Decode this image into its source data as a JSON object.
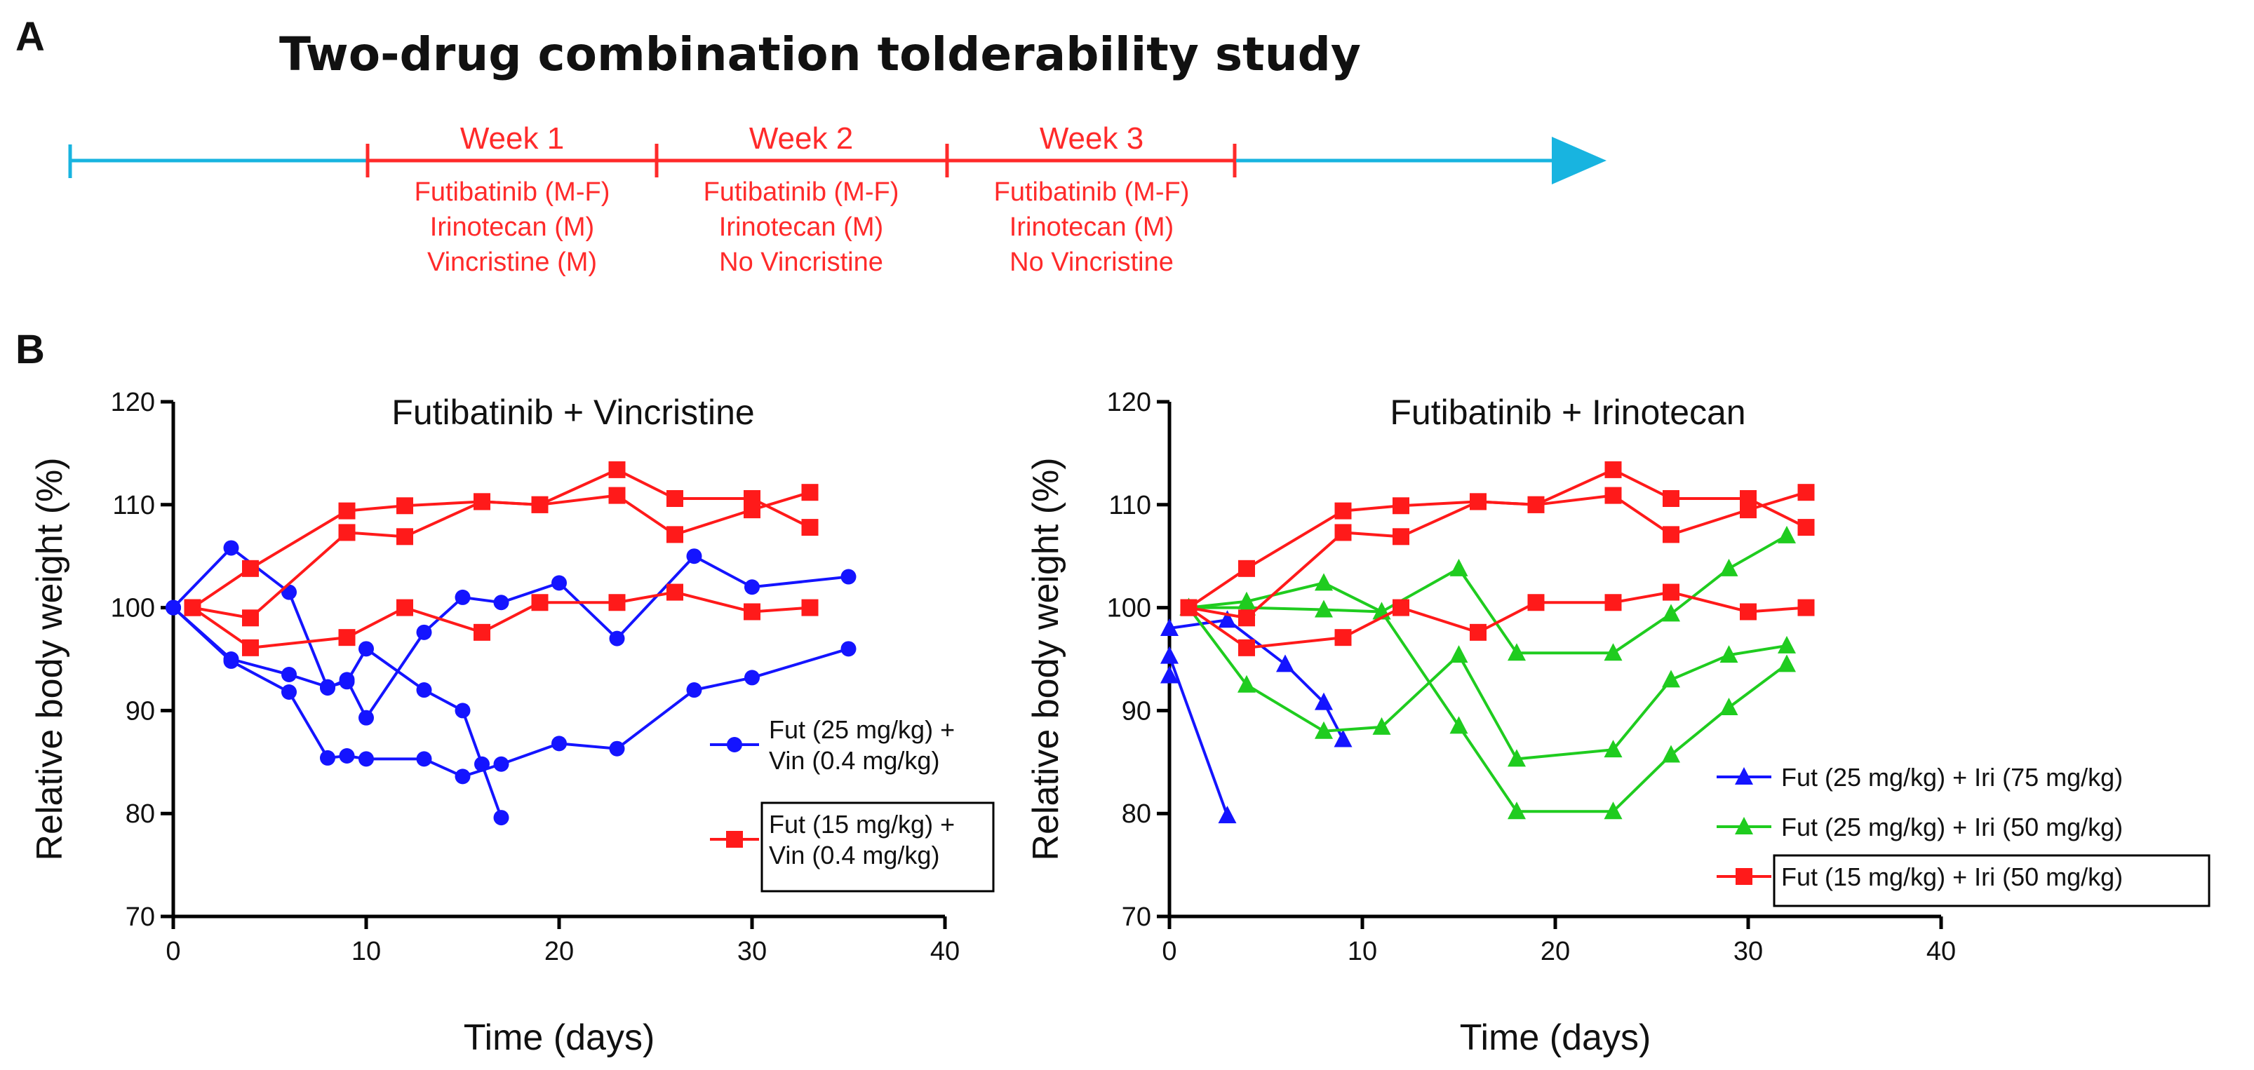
{
  "panel_a": {
    "letter": "A",
    "title": "Two-drug combination tolderability study",
    "colors": {
      "baseline": "#18b4e0",
      "treatment": "#ff2a2a"
    },
    "weeks": [
      {
        "label": "Week 1",
        "drugs": [
          "Futibatinib (M-F)",
          "Irinotecan (M)",
          "Vincristine (M)"
        ]
      },
      {
        "label": "Week 2",
        "drugs": [
          "Futibatinib (M-F)",
          "Irinotecan (M)",
          "No Vincristine"
        ]
      },
      {
        "label": "Week 3",
        "drugs": [
          "Futibatinib (M-F)",
          "Irinotecan (M)",
          "No Vincristine"
        ]
      }
    ]
  },
  "panel_b": {
    "letter": "B"
  },
  "chart_data": [
    {
      "type": "line",
      "title": "Futibatinib + Vincristine",
      "xlabel": "Time (days)",
      "ylabel": "Relative body weight (%)",
      "xlim": [
        0,
        40
      ],
      "ylim": [
        70,
        120
      ],
      "xticks": [
        0,
        10,
        20,
        30,
        40
      ],
      "yticks": [
        70,
        80,
        90,
        100,
        110,
        120
      ],
      "legend": [
        {
          "lines": [
            "Fut (25 mg/kg) +",
            "Vin (0.4 mg/kg)"
          ],
          "color": "#1414ff",
          "marker": "circle",
          "boxed": false
        },
        {
          "lines": [
            "Fut (15 mg/kg) +",
            "Vin (0.4 mg/kg)"
          ],
          "color": "#ff1a1a",
          "marker": "square",
          "boxed": true
        }
      ],
      "series": [
        {
          "name": "Fut (25 mg/kg) + Vin (0.4 mg/kg) #1",
          "color": "#1414ff",
          "marker": "circle",
          "x": [
            0,
            3,
            6,
            8,
            9,
            10,
            13,
            15,
            16,
            17
          ],
          "y": [
            100,
            95,
            93.5,
            92.3,
            92.8,
            96,
            92,
            90,
            84.8,
            79.6
          ]
        },
        {
          "name": "Fut (25 mg/kg) + Vin (0.4 mg/kg) #2",
          "color": "#1414ff",
          "marker": "circle",
          "x": [
            0,
            3,
            6,
            8,
            9,
            10,
            13,
            15,
            17,
            20,
            23,
            27,
            30,
            35
          ],
          "y": [
            100,
            105.8,
            101.5,
            92.2,
            93,
            89.3,
            97.6,
            101,
            100.5,
            102.4,
            97,
            105,
            102,
            103
          ]
        },
        {
          "name": "Fut (25 mg/kg) + Vin (0.4 mg/kg) #3",
          "color": "#1414ff",
          "marker": "circle",
          "x": [
            0,
            3,
            6,
            8,
            9,
            10,
            13,
            15,
            17,
            20,
            23,
            27,
            30,
            35
          ],
          "y": [
            100,
            94.8,
            91.8,
            85.4,
            85.6,
            85.3,
            85.3,
            83.6,
            84.8,
            86.8,
            86.3,
            92,
            93.2,
            96
          ]
        },
        {
          "name": "Fut (15 mg/kg) + Vin (0.4 mg/kg) #1",
          "color": "#ff1a1a",
          "marker": "square",
          "x": [
            1,
            4,
            9,
            12,
            16,
            19,
            23,
            26,
            30,
            33
          ],
          "y": [
            100,
            103.8,
            109.4,
            109.9,
            110.3,
            110,
            113.4,
            110.6,
            110.6,
            107.8
          ]
        },
        {
          "name": "Fut (15 mg/kg) + Vin (0.4 mg/kg) #2",
          "color": "#ff1a1a",
          "marker": "square",
          "x": [
            1,
            4,
            9,
            12,
            16,
            19,
            23,
            26,
            30,
            33
          ],
          "y": [
            100,
            99,
            107.3,
            106.9,
            110.3,
            110,
            110.9,
            107.1,
            109.5,
            111.2
          ]
        },
        {
          "name": "Fut (15 mg/kg) + Vin (0.4 mg/kg) #3",
          "color": "#ff1a1a",
          "marker": "square",
          "x": [
            1,
            4,
            9,
            12,
            16,
            19,
            23,
            26,
            30,
            33
          ],
          "y": [
            100,
            96.1,
            97.1,
            100,
            97.6,
            100.5,
            100.5,
            101.5,
            99.6,
            100
          ]
        }
      ]
    },
    {
      "type": "line",
      "title": "Futibatinib + Irinotecan",
      "xlabel": "Time (days)",
      "ylabel": "Relative body weight (%)",
      "xlim": [
        0,
        40
      ],
      "ylim": [
        70,
        120
      ],
      "xticks": [
        0,
        10,
        20,
        30,
        40
      ],
      "yticks": [
        70,
        80,
        90,
        100,
        110,
        120
      ],
      "legend": [
        {
          "lines": [
            "Fut (25 mg/kg) + Iri (75 mg/kg)"
          ],
          "color": "#1414ff",
          "marker": "triangle",
          "boxed": false
        },
        {
          "lines": [
            "Fut (25 mg/kg) + Iri (50 mg/kg)"
          ],
          "color": "#1fcc1f",
          "marker": "triangle",
          "boxed": false
        },
        {
          "lines": [
            "Fut (15 mg/kg) + Iri (50 mg/kg)"
          ],
          "color": "#ff1a1a",
          "marker": "square",
          "boxed": true
        }
      ],
      "series": [
        {
          "name": "Fut (25 mg/kg) + Iri (75 mg/kg) #1",
          "color": "#1414ff",
          "marker": "triangle",
          "x": [
            0,
            3,
            6,
            8,
            9
          ],
          "y": [
            98,
            98.8,
            94.5,
            90.8,
            87.2
          ]
        },
        {
          "name": "Fut (25 mg/kg) + Iri (75 mg/kg) #2",
          "color": "#1414ff",
          "marker": "triangle",
          "x": [
            0,
            3
          ],
          "y": [
            95.3,
            79.8
          ]
        },
        {
          "name": "Fut (25 mg/kg) + Iri (75 mg/kg) #3",
          "color": "#1414ff",
          "marker": "triangle",
          "x": [
            0
          ],
          "y": [
            93.4
          ]
        },
        {
          "name": "Fut (25 mg/kg) + Iri (50 mg/kg) #1",
          "color": "#1fcc1f",
          "marker": "triangle",
          "x": [
            1,
            4,
            8,
            11,
            15,
            18,
            23,
            26,
            29,
            32
          ],
          "y": [
            100,
            100.6,
            102.4,
            99.6,
            103.8,
            95.6,
            95.6,
            99.4,
            103.8,
            107
          ]
        },
        {
          "name": "Fut (25 mg/kg) + Iri (50 mg/kg) #2",
          "color": "#1fcc1f",
          "marker": "triangle",
          "x": [
            1,
            4,
            8,
            11,
            15,
            18,
            23,
            26,
            29,
            32
          ],
          "y": [
            100,
            92.5,
            88,
            88.4,
            95.4,
            85.3,
            86.2,
            93,
            95.4,
            96.3
          ]
        },
        {
          "name": "Fut (25 mg/kg) + Iri (50 mg/kg) #3",
          "color": "#1fcc1f",
          "marker": "triangle",
          "x": [
            1,
            4,
            8,
            11,
            15,
            18,
            23,
            26,
            29,
            32
          ],
          "y": [
            100,
            100,
            99.8,
            99.6,
            88.5,
            80.2,
            80.2,
            85.7,
            90.3,
            94.5
          ]
        },
        {
          "name": "Fut (15 mg/kg) + Iri (50 mg/kg) #1",
          "color": "#ff1a1a",
          "marker": "square",
          "x": [
            1,
            4,
            9,
            12,
            16,
            19,
            23,
            26,
            30,
            33
          ],
          "y": [
            100,
            103.8,
            109.4,
            109.9,
            110.3,
            110,
            113.4,
            110.6,
            110.6,
            107.8
          ]
        },
        {
          "name": "Fut (15 mg/kg) + Iri (50 mg/kg) #2",
          "color": "#ff1a1a",
          "marker": "square",
          "x": [
            1,
            4,
            9,
            12,
            16,
            19,
            23,
            26,
            30,
            33
          ],
          "y": [
            100,
            99,
            107.3,
            106.9,
            110.3,
            110,
            110.9,
            107.1,
            109.5,
            111.2
          ]
        },
        {
          "name": "Fut (15 mg/kg) + Iri (50 mg/kg) #3",
          "color": "#ff1a1a",
          "marker": "square",
          "x": [
            1,
            4,
            9,
            12,
            16,
            19,
            23,
            26,
            30,
            33
          ],
          "y": [
            100,
            96.1,
            97.1,
            100,
            97.6,
            100.5,
            100.5,
            101.5,
            99.6,
            100
          ]
        }
      ]
    }
  ]
}
